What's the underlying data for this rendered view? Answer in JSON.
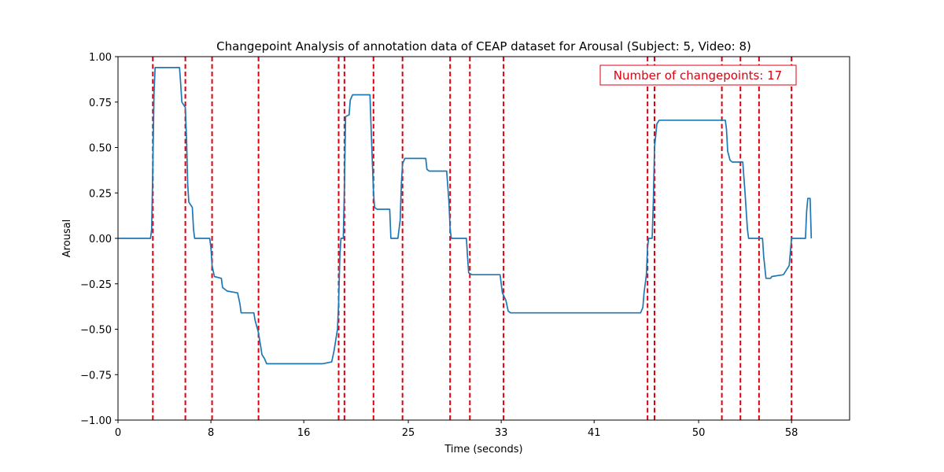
{
  "chart_data": {
    "type": "line",
    "title": "Changepoint Analysis of annotation data of CEAP dataset for Arousal (Subject: 5, Video: 8)",
    "xlabel": "Time (seconds)",
    "ylabel": "Arousal",
    "xlim": [
      0,
      63
    ],
    "ylim": [
      -1.0,
      1.0
    ],
    "x_ticks": [
      0,
      8,
      16,
      25,
      33,
      41,
      50,
      58
    ],
    "x_tick_labels": [
      "0",
      "8",
      "16",
      "25",
      "33",
      "41",
      "50",
      "58"
    ],
    "y_ticks": [
      -1.0,
      -0.75,
      -0.5,
      -0.25,
      0.0,
      0.25,
      0.5,
      0.75,
      1.0
    ],
    "y_tick_labels": [
      "−1.00",
      "−0.75",
      "−0.50",
      "−0.25",
      "0.00",
      "0.25",
      "0.50",
      "0.75",
      "1.00"
    ],
    "grid": false,
    "series": [
      {
        "color": "#1f77b4",
        "points": [
          [
            0,
            0
          ],
          [
            2.8,
            0
          ],
          [
            2.9,
            0.05
          ],
          [
            3.0,
            0.4
          ],
          [
            3.1,
            0.8
          ],
          [
            3.2,
            0.94
          ],
          [
            5.3,
            0.94
          ],
          [
            5.4,
            0.85
          ],
          [
            5.5,
            0.75
          ],
          [
            5.8,
            0.72
          ],
          [
            5.9,
            0.55
          ],
          [
            6.0,
            0.3
          ],
          [
            6.1,
            0.2
          ],
          [
            6.3,
            0.18
          ],
          [
            6.4,
            0.17
          ],
          [
            6.5,
            0.05
          ],
          [
            6.6,
            0
          ],
          [
            7.9,
            0
          ],
          [
            8.0,
            -0.05
          ],
          [
            8.1,
            -0.15
          ],
          [
            8.3,
            -0.21
          ],
          [
            8.9,
            -0.22
          ],
          [
            9.0,
            -0.27
          ],
          [
            9.4,
            -0.29
          ],
          [
            10.3,
            -0.3
          ],
          [
            10.5,
            -0.36
          ],
          [
            10.6,
            -0.41
          ],
          [
            11.7,
            -0.41
          ],
          [
            11.8,
            -0.45
          ],
          [
            12.1,
            -0.52
          ],
          [
            12.3,
            -0.6
          ],
          [
            12.4,
            -0.64
          ],
          [
            12.6,
            -0.66
          ],
          [
            12.8,
            -0.69
          ],
          [
            17.6,
            -0.69
          ],
          [
            18.4,
            -0.68
          ],
          [
            18.6,
            -0.62
          ],
          [
            18.9,
            -0.5
          ],
          [
            19.0,
            -0.35
          ],
          [
            19.1,
            -0.1
          ],
          [
            19.2,
            0
          ],
          [
            19.4,
            0
          ],
          [
            19.5,
            0.3
          ],
          [
            19.6,
            0.67
          ],
          [
            19.9,
            0.68
          ],
          [
            20.0,
            0.76
          ],
          [
            20.2,
            0.79
          ],
          [
            21.7,
            0.79
          ],
          [
            21.8,
            0.6
          ],
          [
            22.0,
            0.25
          ],
          [
            22.1,
            0.17
          ],
          [
            22.3,
            0.16
          ],
          [
            23.4,
            0.16
          ],
          [
            23.5,
            0
          ],
          [
            24.1,
            0
          ],
          [
            24.3,
            0.1
          ],
          [
            24.4,
            0.3
          ],
          [
            24.5,
            0.41
          ],
          [
            24.7,
            0.44
          ],
          [
            26.5,
            0.44
          ],
          [
            26.6,
            0.38
          ],
          [
            26.8,
            0.37
          ],
          [
            28.3,
            0.37
          ],
          [
            28.5,
            0.2
          ],
          [
            28.6,
            0.05
          ],
          [
            28.7,
            0
          ],
          [
            30.0,
            0
          ],
          [
            30.1,
            -0.1
          ],
          [
            30.2,
            -0.19
          ],
          [
            30.5,
            -0.2
          ],
          [
            32.9,
            -0.2
          ],
          [
            33.1,
            -0.3
          ],
          [
            33.4,
            -0.34
          ],
          [
            33.6,
            -0.4
          ],
          [
            33.8,
            -0.41
          ],
          [
            38,
            -0.41
          ],
          [
            40,
            -0.41
          ],
          [
            45.0,
            -0.41
          ],
          [
            45.2,
            -0.38
          ],
          [
            45.3,
            -0.3
          ],
          [
            45.5,
            -0.2
          ],
          [
            45.6,
            -0.05
          ],
          [
            45.7,
            0
          ],
          [
            46.0,
            0
          ],
          [
            46.1,
            0.2
          ],
          [
            46.2,
            0.5
          ],
          [
            46.4,
            0.63
          ],
          [
            46.6,
            0.65
          ],
          [
            48.0,
            0.65
          ],
          [
            50.0,
            0.65
          ],
          [
            52.3,
            0.65
          ],
          [
            52.4,
            0.6
          ],
          [
            52.5,
            0.48
          ],
          [
            52.7,
            0.43
          ],
          [
            52.9,
            0.42
          ],
          [
            53.8,
            0.42
          ],
          [
            54.0,
            0.25
          ],
          [
            54.1,
            0.15
          ],
          [
            54.2,
            0.05
          ],
          [
            54.3,
            0
          ],
          [
            55.5,
            0
          ],
          [
            55.6,
            -0.1
          ],
          [
            55.8,
            -0.22
          ],
          [
            56.2,
            -0.22
          ],
          [
            56.3,
            -0.21
          ],
          [
            57.3,
            -0.2
          ],
          [
            57.5,
            -0.18
          ],
          [
            57.8,
            -0.15
          ],
          [
            58.0,
            0
          ],
          [
            59.2,
            0
          ],
          [
            59.3,
            0.15
          ],
          [
            59.4,
            0.22
          ],
          [
            59.6,
            0.22
          ],
          [
            59.7,
            0
          ]
        ]
      }
    ],
    "changepoints": [
      3.0,
      5.8,
      8.1,
      12.1,
      19.0,
      19.5,
      22.0,
      24.5,
      28.6,
      30.3,
      33.2,
      45.6,
      46.2,
      52.0,
      53.6,
      55.2,
      58.0
    ],
    "changepoint_color": "#e0000f",
    "annotation": "Number of changepoints: 17"
  }
}
